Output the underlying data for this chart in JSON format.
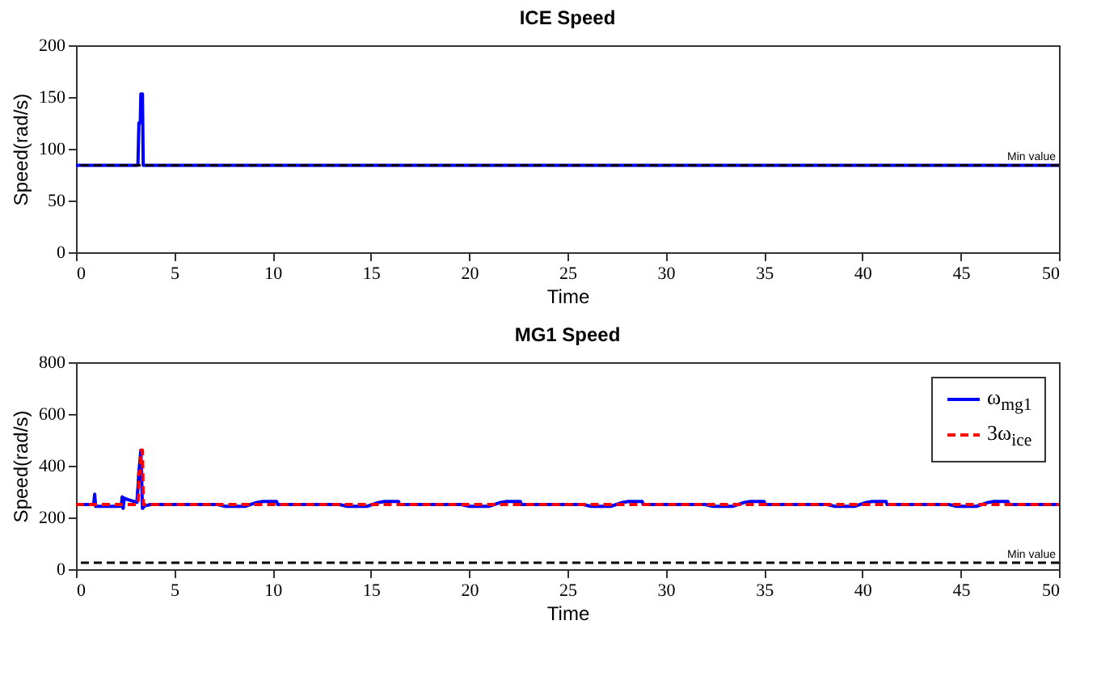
{
  "chart_data": [
    {
      "type": "line",
      "title": "ICE Speed",
      "xlabel": "Time",
      "ylabel": "Speed(rad/s)",
      "xlim": [
        0,
        50
      ],
      "ylim": [
        0,
        200
      ],
      "xticks": [
        0,
        5,
        10,
        15,
        20,
        25,
        30,
        35,
        40,
        45,
        50
      ],
      "yticks": [
        0,
        50,
        100,
        150,
        200
      ],
      "series": [
        {
          "color": "#0000ff",
          "line_style": "solid",
          "x": [
            0,
            3.15,
            3.2,
            3.27,
            3.3,
            3.38,
            3.42,
            50
          ],
          "values": [
            84,
            84,
            125,
            125,
            153,
            153,
            84,
            84
          ]
        }
      ],
      "ref_lines": [
        {
          "axis": "y",
          "value": 84,
          "label": "Min value",
          "color": "#000000",
          "line_style": "dashed"
        }
      ]
    },
    {
      "type": "line",
      "title": "MG1 Speed",
      "xlabel": "Time",
      "ylabel": "Speed(rad/s)",
      "xlim": [
        0,
        50
      ],
      "ylim": [
        0,
        800
      ],
      "xticks": [
        0,
        5,
        10,
        15,
        20,
        25,
        30,
        35,
        40,
        45,
        50
      ],
      "yticks": [
        0,
        200,
        400,
        600,
        800
      ],
      "legend": "top right",
      "series": [
        {
          "name": "ω$_{mg1}$",
          "color": "#0000ff",
          "line_style": "solid",
          "x": [
            0,
            0.9,
            0.95,
            1.0,
            2.3,
            2.35,
            2.4,
            2.45,
            2.6,
            3.1,
            3.2,
            3.3,
            3.38,
            3.5,
            3.8,
            7.2,
            7.6,
            8.6,
            9.2,
            9.5,
            10.2,
            10.25,
            13.4,
            13.8,
            14.8,
            15.4,
            15.7,
            16.4,
            16.45,
            19.6,
            20.0,
            21.0,
            21.6,
            21.9,
            22.6,
            22.65,
            25.8,
            26.2,
            27.2,
            27.8,
            28.1,
            28.8,
            28.85,
            32.0,
            32.4,
            33.4,
            34.0,
            34.3,
            35.0,
            35.05,
            38.2,
            38.6,
            39.6,
            40.2,
            40.5,
            41.2,
            41.25,
            44.4,
            44.8,
            45.8,
            46.4,
            46.7,
            47.4,
            47.45,
            50
          ],
          "values": [
            250,
            250,
            290,
            243,
            243,
            280,
            235,
            275,
            270,
            258,
            375,
            460,
            235,
            245,
            250,
            250,
            243,
            243,
            258,
            262,
            262,
            250,
            250,
            243,
            243,
            258,
            262,
            262,
            250,
            250,
            243,
            243,
            258,
            262,
            262,
            250,
            250,
            243,
            243,
            258,
            262,
            262,
            250,
            250,
            243,
            243,
            258,
            262,
            262,
            250,
            250,
            243,
            243,
            258,
            262,
            262,
            250,
            250,
            243,
            243,
            258,
            262,
            262,
            250,
            250
          ]
        },
        {
          "name": "3ω$_{ice}$",
          "color": "#ff0000",
          "line_style": "dashed",
          "x": [
            0,
            3.15,
            3.2,
            3.27,
            3.3,
            3.38,
            3.42,
            50
          ],
          "values": [
            250,
            250,
            375,
            375,
            460,
            460,
            250,
            250
          ]
        }
      ],
      "ref_lines": [
        {
          "axis": "y",
          "value": 25,
          "label": "Min value",
          "color": "#000000",
          "line_style": "dashed"
        }
      ]
    }
  ]
}
